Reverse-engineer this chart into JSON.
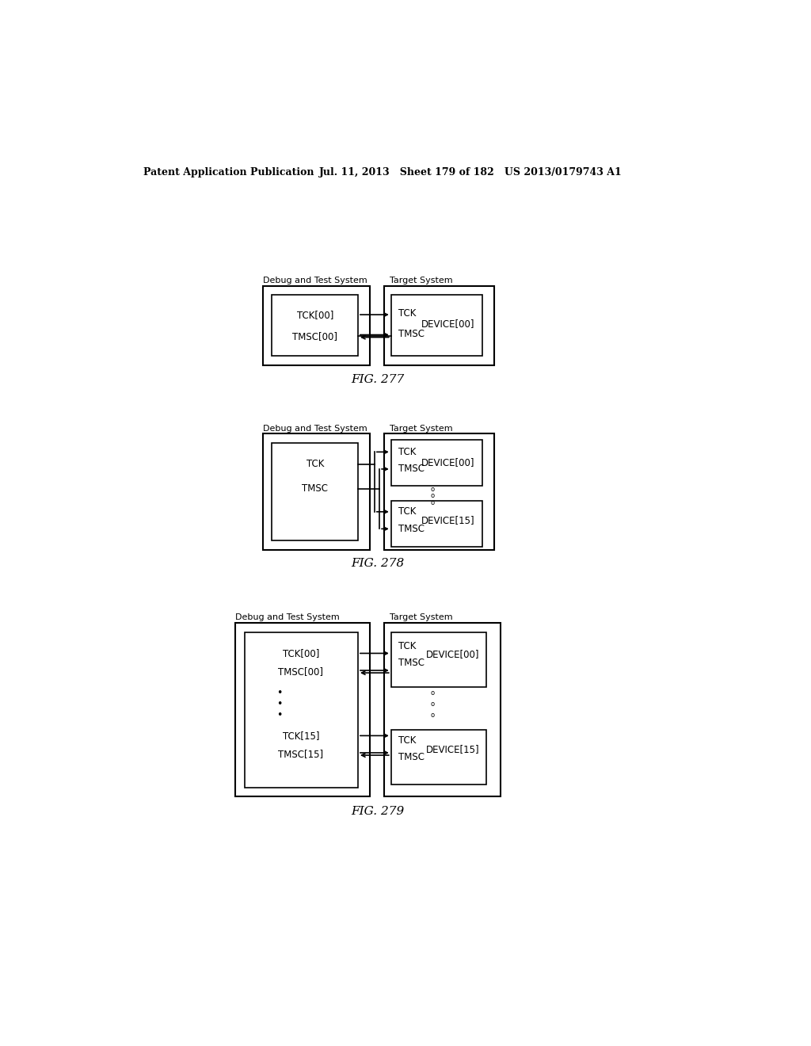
{
  "header_left": "Patent Application Publication",
  "header_mid": "Jul. 11, 2013   Sheet 179 of 182   US 2013/0179743 A1",
  "bg_color": "#ffffff",
  "text_color": "#000000",
  "fig277_label": "FIG. 277",
  "fig278_label": "FIG. 278",
  "fig279_label": "FIG. 279",
  "debug_label": "Debug and Test System",
  "target_label": "Target System",
  "fs_body": 8.5,
  "fs_label": 8.0,
  "fs_fig": 11.0
}
